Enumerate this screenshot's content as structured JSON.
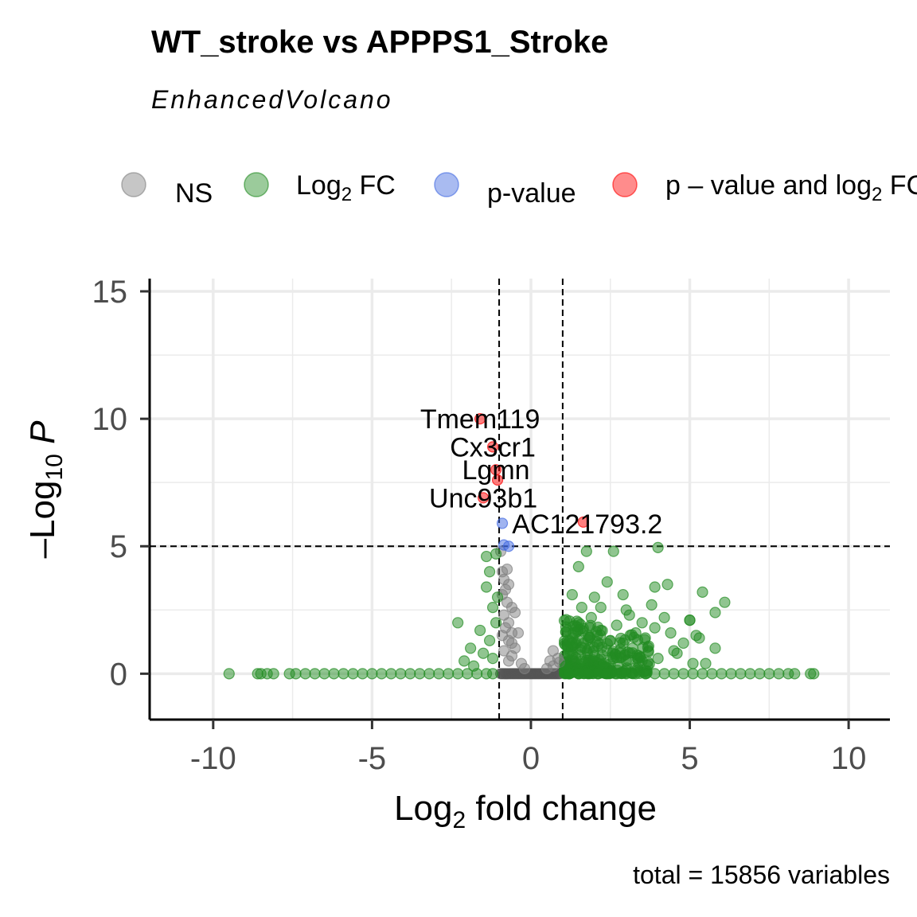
{
  "chart_data": {
    "type": "scatter",
    "title": "WT_stroke vs APPPS1_Stroke",
    "subtitle": "EnhancedVolcano",
    "caption": "total = 15856 variables",
    "xlabel": {
      "main": "Log",
      "sub": "2",
      "rest": " fold change"
    },
    "ylabel": {
      "minus": "–",
      "main": "Log",
      "sub": "10",
      "rest": " P"
    },
    "xlim": [
      -12,
      11.3
    ],
    "ylim": [
      -1.8,
      15.5
    ],
    "x_ticks": [
      -10,
      -5,
      0,
      5,
      10
    ],
    "x_tick_labels": [
      "-10",
      "-5",
      "0",
      "5",
      "10"
    ],
    "y_ticks": [
      0,
      5,
      10,
      15
    ],
    "y_tick_labels": [
      "0",
      "5",
      "10",
      "15"
    ],
    "grid": true,
    "fc_cutoff": 1,
    "p_cutoff_log10": 5,
    "legend": {
      "position": "top",
      "items": [
        {
          "key": "ns",
          "label": "NS",
          "color": "#808080"
        },
        {
          "key": "fc",
          "label": "Log",
          "sub": "2",
          "rest": " FC",
          "color": "#228B22"
        },
        {
          "key": "p",
          "label": "p-value",
          "color": "#4169E1"
        },
        {
          "key": "both",
          "label": "p – value and log",
          "sub": "2",
          "rest": " FC",
          "color": "#FF0000"
        }
      ]
    },
    "series": [
      {
        "name": "NS",
        "color": "#808080",
        "points": [
          [
            -0.9,
            4.0
          ],
          [
            -0.75,
            4.1
          ],
          [
            -0.85,
            3.7
          ],
          [
            -0.7,
            3.5
          ],
          [
            -0.8,
            3.3
          ],
          [
            -0.9,
            3.1
          ],
          [
            -0.75,
            2.8
          ],
          [
            -0.6,
            2.6
          ],
          [
            -0.5,
            2.4
          ],
          [
            -0.85,
            2.3
          ],
          [
            -0.7,
            2.0
          ],
          [
            -0.8,
            1.8
          ],
          [
            -0.6,
            1.6
          ],
          [
            -0.9,
            1.5
          ],
          [
            -0.7,
            1.3
          ],
          [
            -0.4,
            1.6
          ],
          [
            -0.5,
            1.0
          ],
          [
            -0.6,
            0.7
          ],
          [
            -0.3,
            0.4
          ],
          [
            -0.85,
            0.9
          ],
          [
            -0.7,
            0.5
          ],
          [
            -0.2,
            0.2
          ],
          [
            0.7,
            0.3
          ],
          [
            0.5,
            0.2
          ],
          [
            0.9,
            0.45
          ],
          [
            0.7,
            0.9
          ],
          [
            0.85,
            0.6
          ],
          [
            0.6,
            0.5
          ],
          [
            -0.95,
            4.8
          ],
          [
            -0.6,
            1.2
          ]
        ]
      },
      {
        "name": "Log2 FC",
        "color": "#228B22",
        "points": [
          [
            -9.5,
            0.0
          ],
          [
            -8.6,
            0.0
          ],
          [
            -8.5,
            0.0
          ],
          [
            -8.3,
            0.0
          ],
          [
            -8.1,
            0.0
          ],
          [
            -7.6,
            0.0
          ],
          [
            -7.4,
            0.0
          ],
          [
            -7.1,
            0.0
          ],
          [
            -6.8,
            0.0
          ],
          [
            -6.5,
            0.0
          ],
          [
            -6.2,
            0.0
          ],
          [
            -5.9,
            0.0
          ],
          [
            -5.6,
            0.0
          ],
          [
            -5.3,
            0.0
          ],
          [
            -5.0,
            0.0
          ],
          [
            -4.7,
            0.0
          ],
          [
            -4.4,
            0.0
          ],
          [
            -4.1,
            0.0
          ],
          [
            -3.8,
            0.0
          ],
          [
            -3.5,
            0.0
          ],
          [
            -3.2,
            0.0
          ],
          [
            -2.9,
            0.0
          ],
          [
            -2.6,
            0.0
          ],
          [
            -2.3,
            0.0
          ],
          [
            -2.0,
            0.0
          ],
          [
            -1.7,
            0.0
          ],
          [
            -1.4,
            0.0
          ],
          [
            -1.2,
            0.0
          ],
          [
            -2.3,
            2.0
          ],
          [
            -2.1,
            0.5
          ],
          [
            -1.9,
            1.0
          ],
          [
            -1.8,
            0.3
          ],
          [
            -1.6,
            1.7
          ],
          [
            -1.5,
            0.8
          ],
          [
            -1.4,
            4.6
          ],
          [
            -1.3,
            4.0
          ],
          [
            -1.4,
            3.4
          ],
          [
            -1.2,
            2.6
          ],
          [
            -1.1,
            2.0
          ],
          [
            -1.3,
            1.3
          ],
          [
            -1.2,
            0.6
          ],
          [
            -1.1,
            4.7
          ],
          [
            -1.05,
            3.0
          ],
          [
            1.1,
            0.3
          ],
          [
            1.2,
            0.8
          ],
          [
            1.3,
            1.2
          ],
          [
            1.4,
            1.6
          ],
          [
            1.5,
            2.0
          ],
          [
            1.6,
            0.5
          ],
          [
            1.7,
            1.0
          ],
          [
            1.8,
            1.5
          ],
          [
            1.9,
            2.2
          ],
          [
            2.0,
            0.7
          ],
          [
            2.1,
            1.1
          ],
          [
            2.2,
            1.7
          ],
          [
            2.3,
            0.4
          ],
          [
            2.4,
            0.9
          ],
          [
            2.5,
            1.3
          ],
          [
            2.6,
            0.6
          ],
          [
            2.7,
            1.9
          ],
          [
            2.8,
            0.8
          ],
          [
            2.9,
            1.2
          ],
          [
            3.0,
            0.5
          ],
          [
            3.1,
            2.3
          ],
          [
            3.2,
            1.0
          ],
          [
            3.3,
            1.6
          ],
          [
            3.4,
            0.7
          ],
          [
            3.5,
            2.0
          ],
          [
            3.6,
            1.4
          ],
          [
            3.7,
            0.9
          ],
          [
            3.8,
            2.7
          ],
          [
            3.9,
            1.8
          ],
          [
            4.0,
            0.6
          ],
          [
            4.2,
            2.2
          ],
          [
            4.4,
            1.6
          ],
          [
            4.6,
            0.8
          ],
          [
            4.8,
            1.2
          ],
          [
            5.0,
            2.1
          ],
          [
            5.2,
            1.5
          ],
          [
            5.5,
            0.4
          ],
          [
            5.8,
            1.0
          ],
          [
            1.5,
            4.2
          ],
          [
            1.75,
            4.8
          ],
          [
            2.6,
            4.8
          ],
          [
            4.0,
            4.95
          ],
          [
            3.9,
            3.4
          ],
          [
            4.3,
            3.5
          ],
          [
            2.4,
            3.6
          ],
          [
            2.9,
            3.1
          ],
          [
            2.0,
            3.0
          ],
          [
            1.3,
            3.1
          ],
          [
            5.4,
            3.2
          ],
          [
            6.1,
            2.8
          ],
          [
            5.8,
            2.4
          ],
          [
            5.0,
            2.1
          ],
          [
            3.0,
            2.5
          ],
          [
            1.6,
            2.6
          ],
          [
            2.2,
            2.6
          ],
          [
            5.3,
            1.4
          ],
          [
            4.5,
            0.9
          ],
          [
            5.1,
            0.4
          ],
          [
            1.2,
            0.0
          ],
          [
            1.5,
            0.0
          ],
          [
            1.8,
            0.0
          ],
          [
            2.1,
            0.0
          ],
          [
            2.4,
            0.0
          ],
          [
            2.7,
            0.0
          ],
          [
            3.0,
            0.0
          ],
          [
            3.3,
            0.0
          ],
          [
            3.6,
            0.0
          ],
          [
            3.9,
            0.0
          ],
          [
            4.2,
            0.0
          ],
          [
            4.5,
            0.0
          ],
          [
            4.8,
            0.0
          ],
          [
            5.1,
            0.0
          ],
          [
            5.4,
            0.0
          ],
          [
            5.7,
            0.0
          ],
          [
            6.0,
            0.0
          ],
          [
            6.3,
            0.0
          ],
          [
            6.6,
            0.0
          ],
          [
            6.9,
            0.0
          ],
          [
            7.2,
            0.0
          ],
          [
            7.5,
            0.0
          ],
          [
            7.8,
            0.0
          ],
          [
            8.1,
            0.0
          ],
          [
            8.3,
            0.0
          ],
          [
            8.8,
            0.0
          ],
          [
            8.9,
            0.0
          ]
        ]
      },
      {
        "name": "p-value",
        "color": "#4169E1",
        "points": [
          [
            -0.9,
            5.9
          ],
          [
            -0.85,
            5.05
          ],
          [
            -0.7,
            5.0
          ]
        ]
      },
      {
        "name": "p - value and log2 FC",
        "color": "#FF0000",
        "points": [
          [
            -1.6,
            10.0
          ],
          [
            -1.2,
            8.9
          ],
          [
            -1.1,
            8.0
          ],
          [
            -1.05,
            7.6
          ],
          [
            -1.5,
            6.9
          ],
          [
            1.65,
            5.95
          ]
        ]
      }
    ],
    "labels": [
      {
        "text": "Tmem119",
        "x": -1.6,
        "y": 10.0
      },
      {
        "text": "Cx3cr1",
        "x": -1.2,
        "y": 8.9
      },
      {
        "text": "Lgmn",
        "x": -1.1,
        "y": 8.0
      },
      {
        "text": "Unc93b1",
        "x": -1.5,
        "y": 6.9
      },
      {
        "text": "AC121793.2",
        "x": 1.65,
        "y": 5.95
      }
    ]
  }
}
